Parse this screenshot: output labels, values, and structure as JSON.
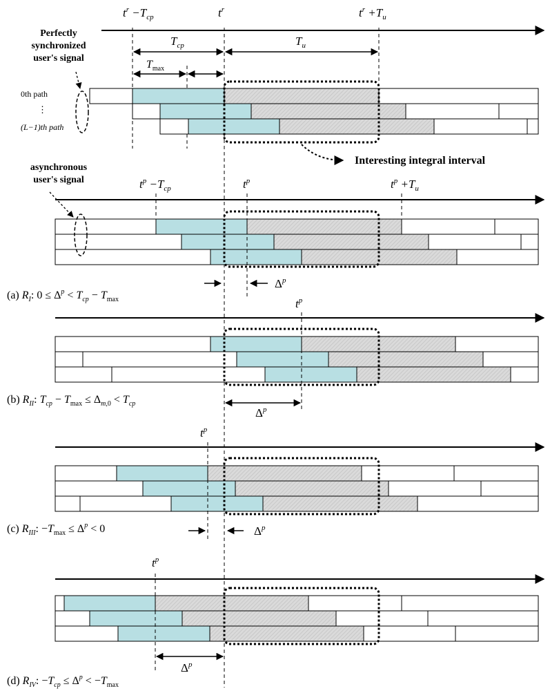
{
  "header": {
    "t_r_minus_Tcp": "t^r − T_cp",
    "t_r": "t^r",
    "t_r_plus_Tu": "t^r + T_u",
    "Tcp": "T_cp",
    "Tu": "T_u",
    "Tmax": "T_max"
  },
  "labels": {
    "sync_line1": "Perfectly",
    "sync_line2": "synchronized",
    "sync_line3": "user's signal",
    "path0": "0th path",
    "vdots": "⋮",
    "pathL": "(L−1)th path",
    "async_line1": "asynchronous",
    "async_line2": "user's signal",
    "interesting": "Interesting integral interval"
  },
  "async_markers": {
    "tp_minus_Tcp": "t^p − T_cp",
    "tp": "t^p",
    "tp_plus_Tu": "t^p + T_u",
    "delta_p": "Δ^p"
  },
  "cases": [
    {
      "tag": "(a)",
      "region": "R_I",
      "condition": "0 ≤ Δ^p < T_cp − T_max"
    },
    {
      "tag": "(b)",
      "region": "R_II",
      "condition": "T_cp − T_max ≤ Δ_m,0 < T_cp"
    },
    {
      "tag": "(c)",
      "region": "R_III",
      "condition": "−T_max ≤ Δ^p < 0"
    },
    {
      "tag": "(d)",
      "region": "R_IV",
      "condition": "−T_cp ≤ Δ^p < −T_max"
    }
  ],
  "colors": {
    "cyclic_prefix": "#b8dfe3",
    "useful_symbol": "#dadada",
    "outline": "#000000"
  }
}
